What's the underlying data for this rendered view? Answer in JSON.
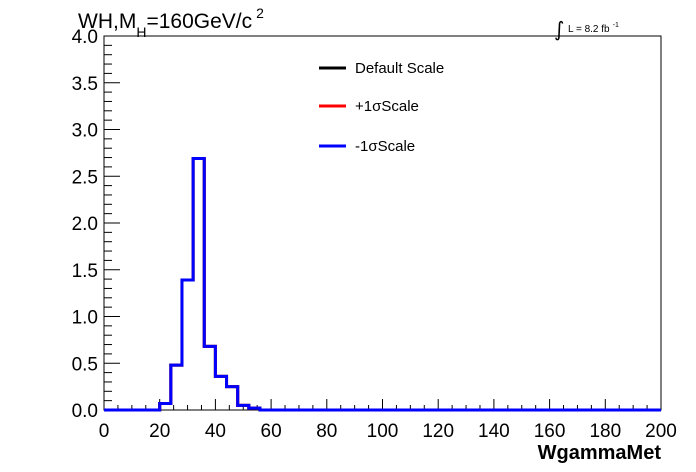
{
  "chart_data": {
    "type": "line",
    "title": {
      "main": "WH,M",
      "sub": "H",
      "rest": "=160GeV/c",
      "sup": "2"
    },
    "luminosity": {
      "symbol": "∫",
      "text": "L = 8.2 fb",
      "sup": "-1"
    },
    "xlabel": "WgammaMet",
    "ylabel": "",
    "xlim": [
      0,
      200
    ],
    "ylim": [
      0,
      4.0
    ],
    "xticks": [
      "0",
      "20",
      "40",
      "60",
      "80",
      "100",
      "120",
      "140",
      "160",
      "180",
      "200"
    ],
    "yticks": [
      "0.0",
      "0.5",
      "1.0",
      "1.5",
      "2.0",
      "2.5",
      "3.0",
      "3.5",
      "4.0"
    ],
    "legend_position": "top-center",
    "bin_edges": [
      0,
      4,
      8,
      12,
      16,
      20,
      24,
      28,
      32,
      36,
      40,
      44,
      48,
      52,
      56,
      60,
      64,
      68,
      72,
      76,
      80,
      84,
      88,
      92,
      96,
      100,
      104,
      108,
      112,
      116,
      120,
      124,
      128,
      132,
      136,
      140,
      144,
      148,
      152,
      156,
      160,
      164,
      168,
      172,
      176,
      180,
      184,
      188,
      192,
      196,
      200
    ],
    "series": [
      {
        "name": "Default Scale",
        "color": "#000000",
        "values": [
          0,
          0,
          0,
          0,
          0,
          0.07,
          0.48,
          1.39,
          2.69,
          0.68,
          0.36,
          0.25,
          0.05,
          0.02,
          0,
          0,
          0,
          0,
          0,
          0,
          0,
          0,
          0,
          0,
          0,
          0,
          0,
          0,
          0,
          0,
          0,
          0,
          0,
          0,
          0,
          0,
          0,
          0,
          0,
          0,
          0,
          0,
          0,
          0,
          0,
          0,
          0,
          0,
          0,
          0
        ]
      },
      {
        "name": "+1σScale",
        "color": "#ff0000",
        "values": [
          0,
          0,
          0,
          0,
          0,
          0.07,
          0.48,
          1.39,
          2.69,
          0.68,
          0.36,
          0.25,
          0.05,
          0.02,
          0,
          0,
          0,
          0,
          0,
          0,
          0,
          0,
          0,
          0,
          0,
          0,
          0,
          0,
          0,
          0,
          0,
          0,
          0,
          0,
          0,
          0,
          0,
          0,
          0,
          0,
          0,
          0,
          0,
          0,
          0,
          0,
          0,
          0,
          0,
          0
        ]
      },
      {
        "name": "-1σScale",
        "color": "#0000ff",
        "values": [
          0,
          0,
          0,
          0,
          0,
          0.07,
          0.48,
          1.39,
          2.69,
          0.68,
          0.36,
          0.25,
          0.05,
          0.02,
          0,
          0,
          0,
          0,
          0,
          0,
          0,
          0,
          0,
          0,
          0,
          0,
          0,
          0,
          0,
          0,
          0,
          0,
          0,
          0,
          0,
          0,
          0,
          0,
          0,
          0,
          0,
          0,
          0,
          0,
          0,
          0,
          0,
          0,
          0,
          0
        ]
      }
    ]
  }
}
